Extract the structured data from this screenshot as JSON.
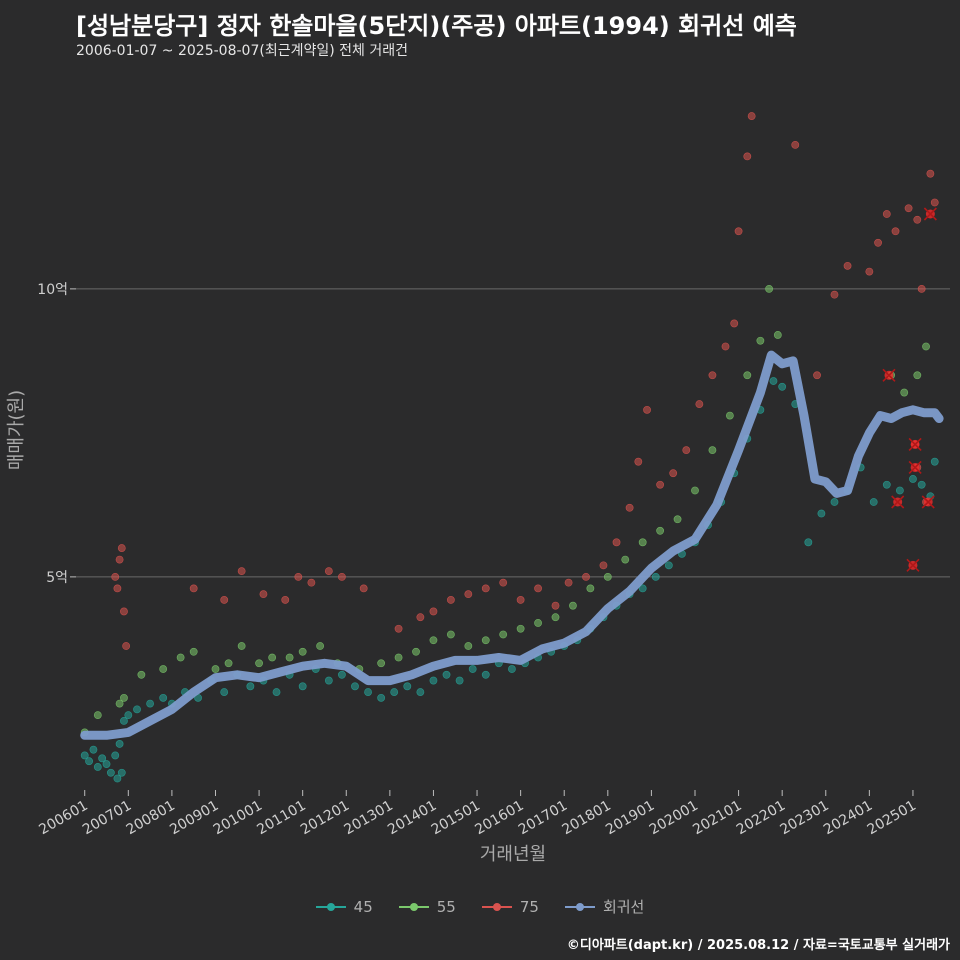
{
  "header": {
    "title": "[성남분당구] 정자 한솔마을(5단지)(주공) 아파트(1994) 회귀선 예측",
    "subtitle": "2006-01-07 ~ 2025-08-07(최근계약일) 전체 거래건"
  },
  "footer": {
    "credit": "©디아파트(dapt.kr) / 2025.08.12 / 자료=국토교통부 실거래가"
  },
  "colors": {
    "background": "#2b2b2c",
    "s45": "#26a69a",
    "s55": "#7bc86c",
    "s75": "#d9534f",
    "trend": "#7e9ccc",
    "grid": "#6a6a6a",
    "highlight": "#ff2a2a"
  },
  "chart_data": {
    "type": "scatter",
    "title": "[성남분당구] 정자 한솔마을(5단지)(주공) 아파트(1994) 회귀선 예측",
    "xlabel": "거래년월",
    "ylabel": "매매가(원)",
    "x_ticks": [
      "200601",
      "200701",
      "200801",
      "200901",
      "201001",
      "201101",
      "201201",
      "201301",
      "201401",
      "201501",
      "201601",
      "201701",
      "201801",
      "201901",
      "202001",
      "202101",
      "202201",
      "202301",
      "202401",
      "202501"
    ],
    "y_ticks": [
      {
        "value": 5,
        "label": "5억"
      },
      {
        "value": 10,
        "label": "10억"
      }
    ],
    "ylim": [
      1.3,
      13.8
    ],
    "xlim": [
      2005.8,
      2025.85
    ],
    "y_unit": "억",
    "legend_position": "bottom",
    "series": [
      {
        "name": "45",
        "color": "#26a69a",
        "points": [
          [
            2006.0,
            1.9
          ],
          [
            2006.1,
            1.8
          ],
          [
            2006.2,
            2.0
          ],
          [
            2006.3,
            1.7
          ],
          [
            2006.4,
            1.85
          ],
          [
            2006.5,
            1.75
          ],
          [
            2006.6,
            1.6
          ],
          [
            2006.7,
            1.9
          ],
          [
            2006.75,
            1.5
          ],
          [
            2006.8,
            2.1
          ],
          [
            2006.85,
            1.6
          ],
          [
            2006.9,
            2.5
          ],
          [
            2007.0,
            2.6
          ],
          [
            2007.2,
            2.7
          ],
          [
            2007.5,
            2.8
          ],
          [
            2007.8,
            2.9
          ],
          [
            2008.0,
            2.8
          ],
          [
            2008.3,
            3.0
          ],
          [
            2008.6,
            2.9
          ],
          [
            2008.9,
            3.2
          ],
          [
            2009.2,
            3.0
          ],
          [
            2009.5,
            3.3
          ],
          [
            2009.8,
            3.1
          ],
          [
            2010.1,
            3.2
          ],
          [
            2010.4,
            3.0
          ],
          [
            2010.7,
            3.3
          ],
          [
            2011.0,
            3.1
          ],
          [
            2011.3,
            3.4
          ],
          [
            2011.6,
            3.2
          ],
          [
            2011.9,
            3.3
          ],
          [
            2012.2,
            3.1
          ],
          [
            2012.5,
            3.0
          ],
          [
            2012.8,
            2.9
          ],
          [
            2013.1,
            3.0
          ],
          [
            2013.4,
            3.1
          ],
          [
            2013.7,
            3.0
          ],
          [
            2014.0,
            3.2
          ],
          [
            2014.3,
            3.3
          ],
          [
            2014.6,
            3.2
          ],
          [
            2014.9,
            3.4
          ],
          [
            2015.2,
            3.3
          ],
          [
            2015.5,
            3.5
          ],
          [
            2015.8,
            3.4
          ],
          [
            2016.1,
            3.5
          ],
          [
            2016.4,
            3.6
          ],
          [
            2016.7,
            3.7
          ],
          [
            2017.0,
            3.8
          ],
          [
            2017.3,
            3.9
          ],
          [
            2017.6,
            4.1
          ],
          [
            2017.9,
            4.3
          ],
          [
            2018.2,
            4.5
          ],
          [
            2018.5,
            4.7
          ],
          [
            2018.8,
            4.8
          ],
          [
            2019.1,
            5.0
          ],
          [
            2019.4,
            5.2
          ],
          [
            2019.7,
            5.4
          ],
          [
            2020.0,
            5.6
          ],
          [
            2020.3,
            5.9
          ],
          [
            2020.6,
            6.3
          ],
          [
            2020.9,
            6.8
          ],
          [
            2021.2,
            7.4
          ],
          [
            2021.5,
            7.9
          ],
          [
            2021.8,
            8.4
          ],
          [
            2022.0,
            8.3
          ],
          [
            2022.3,
            8.0
          ],
          [
            2022.6,
            5.6
          ],
          [
            2022.9,
            6.1
          ],
          [
            2023.2,
            6.3
          ],
          [
            2023.5,
            6.5
          ],
          [
            2023.8,
            6.9
          ],
          [
            2024.1,
            6.3
          ],
          [
            2024.4,
            6.6
          ],
          [
            2024.7,
            6.5
          ],
          [
            2025.0,
            6.7
          ],
          [
            2025.2,
            6.6
          ],
          [
            2025.4,
            6.4
          ],
          [
            2025.5,
            7.0
          ]
        ]
      },
      {
        "name": "55",
        "color": "#7bc86c",
        "points": [
          [
            2006.0,
            2.3
          ],
          [
            2006.3,
            2.6
          ],
          [
            2006.8,
            2.8
          ],
          [
            2006.9,
            2.9
          ],
          [
            2007.3,
            3.3
          ],
          [
            2007.8,
            3.4
          ],
          [
            2008.2,
            3.6
          ],
          [
            2008.5,
            3.7
          ],
          [
            2009.0,
            3.4
          ],
          [
            2009.3,
            3.5
          ],
          [
            2009.6,
            3.8
          ],
          [
            2010.0,
            3.5
          ],
          [
            2010.3,
            3.6
          ],
          [
            2010.7,
            3.6
          ],
          [
            2011.0,
            3.7
          ],
          [
            2011.4,
            3.8
          ],
          [
            2011.8,
            3.5
          ],
          [
            2012.3,
            3.4
          ],
          [
            2012.8,
            3.5
          ],
          [
            2013.2,
            3.6
          ],
          [
            2013.6,
            3.7
          ],
          [
            2014.0,
            3.9
          ],
          [
            2014.4,
            4.0
          ],
          [
            2014.8,
            3.8
          ],
          [
            2015.2,
            3.9
          ],
          [
            2015.6,
            4.0
          ],
          [
            2016.0,
            4.1
          ],
          [
            2016.4,
            4.2
          ],
          [
            2016.8,
            4.3
          ],
          [
            2017.2,
            4.5
          ],
          [
            2017.6,
            4.8
          ],
          [
            2018.0,
            5.0
          ],
          [
            2018.4,
            5.3
          ],
          [
            2018.8,
            5.6
          ],
          [
            2019.2,
            5.8
          ],
          [
            2019.6,
            6.0
          ],
          [
            2020.0,
            6.5
          ],
          [
            2020.4,
            7.2
          ],
          [
            2020.8,
            7.8
          ],
          [
            2021.2,
            8.5
          ],
          [
            2021.5,
            9.1
          ],
          [
            2021.7,
            10.0
          ],
          [
            2021.9,
            9.2
          ],
          [
            2024.5,
            8.5
          ],
          [
            2024.8,
            8.2
          ],
          [
            2025.1,
            8.5
          ],
          [
            2025.3,
            9.0
          ]
        ]
      },
      {
        "name": "75",
        "color": "#d9534f",
        "points": [
          [
            2006.7,
            5.0
          ],
          [
            2006.75,
            4.8
          ],
          [
            2006.8,
            5.3
          ],
          [
            2006.85,
            5.5
          ],
          [
            2006.9,
            4.4
          ],
          [
            2006.95,
            3.8
          ],
          [
            2008.5,
            4.8
          ],
          [
            2009.2,
            4.6
          ],
          [
            2009.6,
            5.1
          ],
          [
            2010.1,
            4.7
          ],
          [
            2010.6,
            4.6
          ],
          [
            2010.9,
            5.0
          ],
          [
            2011.2,
            4.9
          ],
          [
            2011.6,
            5.1
          ],
          [
            2011.9,
            5.0
          ],
          [
            2012.4,
            4.8
          ],
          [
            2013.2,
            4.1
          ],
          [
            2013.7,
            4.3
          ],
          [
            2014.0,
            4.4
          ],
          [
            2014.4,
            4.6
          ],
          [
            2014.8,
            4.7
          ],
          [
            2015.2,
            4.8
          ],
          [
            2015.6,
            4.9
          ],
          [
            2016.0,
            4.6
          ],
          [
            2016.4,
            4.8
          ],
          [
            2016.8,
            4.5
          ],
          [
            2017.1,
            4.9
          ],
          [
            2017.5,
            5.0
          ],
          [
            2017.9,
            5.2
          ],
          [
            2018.2,
            5.6
          ],
          [
            2018.5,
            6.2
          ],
          [
            2018.7,
            7.0
          ],
          [
            2018.9,
            7.9
          ],
          [
            2019.2,
            6.6
          ],
          [
            2019.5,
            6.8
          ],
          [
            2019.8,
            7.2
          ],
          [
            2020.1,
            8.0
          ],
          [
            2020.4,
            8.5
          ],
          [
            2020.7,
            9.0
          ],
          [
            2020.9,
            9.4
          ],
          [
            2021.0,
            11.0
          ],
          [
            2021.2,
            12.3
          ],
          [
            2021.3,
            13.0
          ],
          [
            2022.3,
            12.5
          ],
          [
            2022.8,
            8.5
          ],
          [
            2023.2,
            9.9
          ],
          [
            2023.5,
            10.4
          ],
          [
            2024.0,
            10.3
          ],
          [
            2024.2,
            10.8
          ],
          [
            2024.4,
            11.3
          ],
          [
            2024.6,
            11.0
          ],
          [
            2024.9,
            11.4
          ],
          [
            2025.1,
            11.2
          ],
          [
            2025.2,
            10.0
          ],
          [
            2025.4,
            12.0
          ],
          [
            2025.5,
            11.5
          ],
          [
            2025.05,
            7.3
          ],
          [
            2025.1,
            6.9
          ],
          [
            2025.3,
            6.3
          ]
        ]
      },
      {
        "name": "회귀선",
        "color": "#7e9ccc",
        "type": "line",
        "points": [
          [
            2006.0,
            2.25
          ],
          [
            2006.5,
            2.25
          ],
          [
            2007.0,
            2.3
          ],
          [
            2007.5,
            2.5
          ],
          [
            2008.0,
            2.7
          ],
          [
            2008.5,
            3.0
          ],
          [
            2009.0,
            3.25
          ],
          [
            2009.5,
            3.3
          ],
          [
            2010.0,
            3.25
          ],
          [
            2010.5,
            3.35
          ],
          [
            2011.0,
            3.45
          ],
          [
            2011.5,
            3.5
          ],
          [
            2012.0,
            3.45
          ],
          [
            2012.5,
            3.2
          ],
          [
            2013.0,
            3.2
          ],
          [
            2013.5,
            3.3
          ],
          [
            2014.0,
            3.45
          ],
          [
            2014.5,
            3.55
          ],
          [
            2015.0,
            3.55
          ],
          [
            2015.5,
            3.6
          ],
          [
            2016.0,
            3.55
          ],
          [
            2016.5,
            3.75
          ],
          [
            2017.0,
            3.85
          ],
          [
            2017.5,
            4.05
          ],
          [
            2018.0,
            4.45
          ],
          [
            2018.5,
            4.75
          ],
          [
            2019.0,
            5.15
          ],
          [
            2019.5,
            5.45
          ],
          [
            2020.0,
            5.65
          ],
          [
            2020.5,
            6.25
          ],
          [
            2021.0,
            7.2
          ],
          [
            2021.5,
            8.2
          ],
          [
            2021.75,
            8.85
          ],
          [
            2022.0,
            8.7
          ],
          [
            2022.25,
            8.75
          ],
          [
            2022.5,
            7.8
          ],
          [
            2022.75,
            6.7
          ],
          [
            2023.0,
            6.65
          ],
          [
            2023.25,
            6.45
          ],
          [
            2023.5,
            6.5
          ],
          [
            2023.75,
            7.1
          ],
          [
            2024.0,
            7.5
          ],
          [
            2024.25,
            7.8
          ],
          [
            2024.5,
            7.75
          ],
          [
            2024.75,
            7.85
          ],
          [
            2025.0,
            7.9
          ],
          [
            2025.25,
            7.85
          ],
          [
            2025.5,
            7.85
          ],
          [
            2025.6,
            7.75
          ]
        ]
      }
    ],
    "highlighted": [
      [
        2024.45,
        8.5
      ],
      [
        2024.65,
        6.3
      ],
      [
        2025.05,
        7.3
      ],
      [
        2025.05,
        6.9
      ],
      [
        2025.0,
        5.2
      ],
      [
        2025.35,
        6.3
      ],
      [
        2025.4,
        11.3
      ]
    ]
  }
}
